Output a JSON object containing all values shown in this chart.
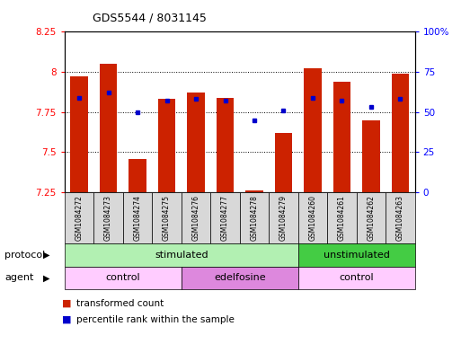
{
  "title": "GDS5544 / 8031145",
  "samples": [
    "GSM1084272",
    "GSM1084273",
    "GSM1084274",
    "GSM1084275",
    "GSM1084276",
    "GSM1084277",
    "GSM1084278",
    "GSM1084279",
    "GSM1084260",
    "GSM1084261",
    "GSM1084262",
    "GSM1084263"
  ],
  "bar_values": [
    7.97,
    8.05,
    7.46,
    7.83,
    7.87,
    7.84,
    7.26,
    7.62,
    8.02,
    7.94,
    7.7,
    7.99
  ],
  "bar_bottom": 7.25,
  "blue_dot_pct": [
    59,
    62,
    50,
    57,
    58,
    57,
    45,
    51,
    59,
    57,
    53,
    58
  ],
  "ylim": [
    7.25,
    8.25
  ],
  "y_ticks": [
    7.25,
    7.5,
    7.75,
    8.0,
    8.25
  ],
  "y_tick_labels": [
    "7.25",
    "7.5",
    "7.75",
    "8",
    "8.25"
  ],
  "y2_ticks": [
    0,
    25,
    50,
    75,
    100
  ],
  "y2_tick_labels": [
    "0",
    "25",
    "50",
    "75",
    "100%"
  ],
  "bar_color": "#cc2200",
  "dot_color": "#0000cc",
  "protocol_groups": [
    {
      "label": "stimulated",
      "start": 0,
      "end": 7,
      "color": "#b2f0b2"
    },
    {
      "label": "unstimulated",
      "start": 8,
      "end": 11,
      "color": "#44cc44"
    }
  ],
  "agent_groups": [
    {
      "label": "control",
      "start": 0,
      "end": 3,
      "color": "#ffccff"
    },
    {
      "label": "edelfosine",
      "start": 4,
      "end": 7,
      "color": "#dd88dd"
    },
    {
      "label": "control",
      "start": 8,
      "end": 11,
      "color": "#ffccff"
    }
  ],
  "protocol_label": "protocol",
  "agent_label": "agent",
  "legend_bar_label": "transformed count",
  "legend_dot_label": "percentile rank within the sample",
  "bar_width": 0.6,
  "xticklabel_bg": "#d8d8d8"
}
